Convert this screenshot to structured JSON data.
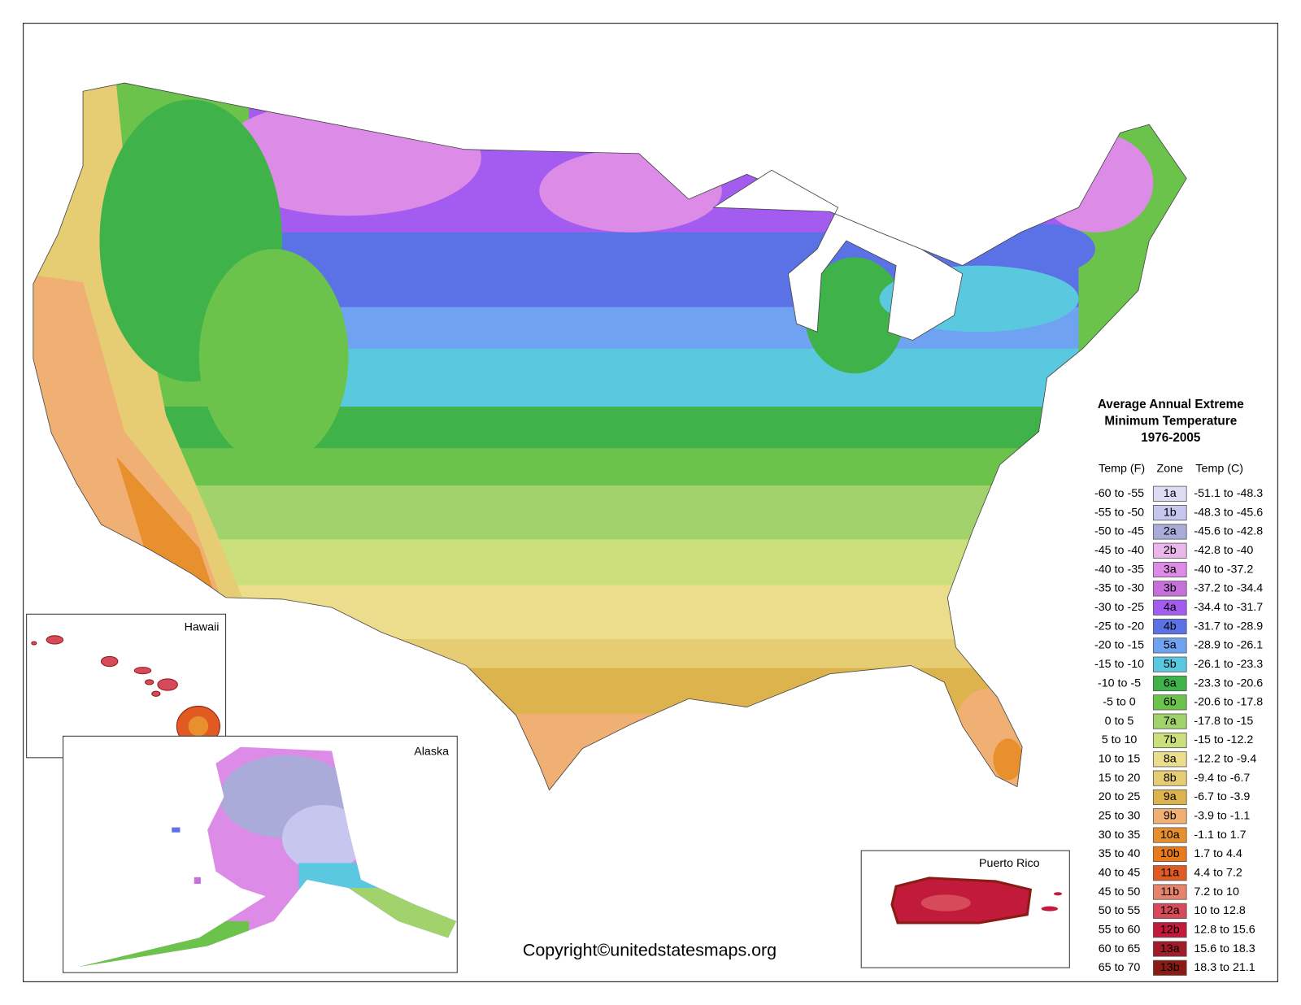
{
  "map": {
    "legend": {
      "title": [
        "Average Annual Extreme",
        "Minimum Temperature",
        "1976-2005"
      ],
      "columns": [
        "Temp (F)",
        "Zone",
        "Temp (C)"
      ],
      "rows": [
        {
          "temp_f": "-60 to -55",
          "zone": "1a",
          "temp_c": "-51.1 to -48.3",
          "color": "#dcdcf4"
        },
        {
          "temp_f": "-55 to -50",
          "zone": "1b",
          "temp_c": "-48.3 to -45.6",
          "color": "#c6c6ee"
        },
        {
          "temp_f": "-50 to -45",
          "zone": "2a",
          "temp_c": "-45.6 to -42.8",
          "color": "#ababd9"
        },
        {
          "temp_f": "-45 to -40",
          "zone": "2b",
          "temp_c": "-42.8 to -40",
          "color": "#eab6ec"
        },
        {
          "temp_f": "-40 to -35",
          "zone": "3a",
          "temp_c": "-40 to -37.2",
          "color": "#dc8ce6"
        },
        {
          "temp_f": "-35 to -30",
          "zone": "3b",
          "temp_c": "-37.2 to -34.4",
          "color": "#c770dc"
        },
        {
          "temp_f": "-30 to -25",
          "zone": "4a",
          "temp_c": "-34.4 to -31.7",
          "color": "#a45cf0"
        },
        {
          "temp_f": "-25 to -20",
          "zone": "4b",
          "temp_c": "-31.7 to -28.9",
          "color": "#5b72e6"
        },
        {
          "temp_f": "-20 to -15",
          "zone": "5a",
          "temp_c": "-28.9 to -26.1",
          "color": "#70a2f2"
        },
        {
          "temp_f": "-15 to -10",
          "zone": "5b",
          "temp_c": "-26.1 to -23.3",
          "color": "#5ac8df"
        },
        {
          "temp_f": "-10 to -5",
          "zone": "6a",
          "temp_c": "-23.3 to -20.6",
          "color": "#3fb34a"
        },
        {
          "temp_f": "-5 to 0",
          "zone": "6b",
          "temp_c": "-20.6 to -17.8",
          "color": "#6cc34b"
        },
        {
          "temp_f": "0 to 5",
          "zone": "7a",
          "temp_c": "-17.8 to -15",
          "color": "#a1d26b"
        },
        {
          "temp_f": "5 to 10",
          "zone": "7b",
          "temp_c": "-15 to -12.2",
          "color": "#cbdf7c"
        },
        {
          "temp_f": "10 to 15",
          "zone": "8a",
          "temp_c": "-12.2 to -9.4",
          "color": "#ecdd8c"
        },
        {
          "temp_f": "15 to 20",
          "zone": "8b",
          "temp_c": "-9.4 to -6.7",
          "color": "#e6cc72"
        },
        {
          "temp_f": "20 to 25",
          "zone": "9a",
          "temp_c": "-6.7 to -3.9",
          "color": "#dcb34d"
        },
        {
          "temp_f": "25 to 30",
          "zone": "9b",
          "temp_c": "-3.9 to -1.1",
          "color": "#f0b073"
        },
        {
          "temp_f": "30 to 35",
          "zone": "10a",
          "temp_c": "-1.1 to 1.7",
          "color": "#e8902d"
        },
        {
          "temp_f": "35 to 40",
          "zone": "10b",
          "temp_c": "1.7 to 4.4",
          "color": "#e87a1c"
        },
        {
          "temp_f": "40 to 45",
          "zone": "11a",
          "temp_c": "4.4 to 7.2",
          "color": "#e05a22"
        },
        {
          "temp_f": "45 to 50",
          "zone": "11b",
          "temp_c": "7.2 to 10",
          "color": "#e8836b"
        },
        {
          "temp_f": "50 to 55",
          "zone": "12a",
          "temp_c": "10 to 12.8",
          "color": "#d64a5a"
        },
        {
          "temp_f": "55 to 60",
          "zone": "12b",
          "temp_c": "12.8 to 15.6",
          "color": "#c21a3a"
        },
        {
          "temp_f": "60 to 65",
          "zone": "13a",
          "temp_c": "15.6 to 18.3",
          "color": "#a01c28"
        },
        {
          "temp_f": "65 to 70",
          "zone": "13b",
          "temp_c": "18.3 to 21.1",
          "color": "#8a1c14"
        }
      ]
    },
    "insets": [
      "Hawaii",
      "Alaska",
      "Puerto Rico"
    ],
    "copyright": "Copyright©unitedstatesmaps.org"
  }
}
